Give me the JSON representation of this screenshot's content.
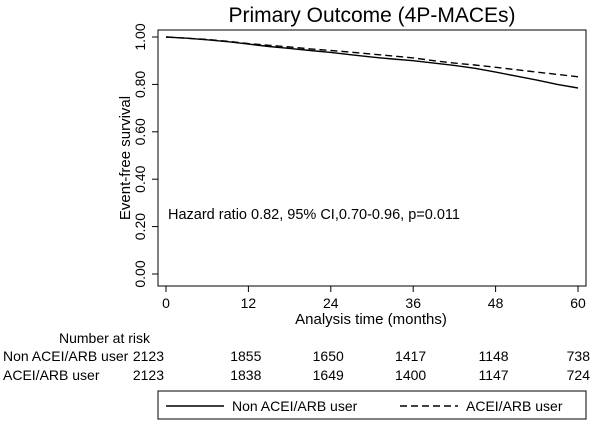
{
  "chart_data": {
    "type": "line",
    "title": "Primary Outcome (4P-MACEs)",
    "xlabel": "Analysis time (months)",
    "ylabel": "Event-free survival",
    "xlim": [
      0,
      60
    ],
    "ylim": [
      0,
      1
    ],
    "x_ticks": [
      "0",
      "12",
      "24",
      "36",
      "48",
      "60"
    ],
    "y_ticks": [
      "0.00",
      "0.20",
      "0.40",
      "0.60",
      "0.80",
      "1.00"
    ],
    "grid": false,
    "annotation": "Hazard ratio 0.82, 95% CI,0.70-0.96, p=0.011",
    "series": [
      {
        "name": "Non ACEI/ARB user",
        "style": "solid",
        "x": [
          0,
          3,
          6,
          9,
          12,
          15,
          18,
          21,
          24,
          27,
          30,
          33,
          36,
          39,
          42,
          45,
          48,
          51,
          54,
          57,
          60
        ],
        "y": [
          1.0,
          0.995,
          0.988,
          0.98,
          0.97,
          0.96,
          0.952,
          0.943,
          0.935,
          0.925,
          0.915,
          0.907,
          0.9,
          0.89,
          0.88,
          0.868,
          0.852,
          0.835,
          0.818,
          0.8,
          0.785
        ]
      },
      {
        "name": "ACEI/ARB user",
        "style": "dashed",
        "x": [
          0,
          3,
          6,
          9,
          12,
          15,
          18,
          21,
          24,
          27,
          30,
          33,
          36,
          39,
          42,
          45,
          48,
          51,
          54,
          57,
          60
        ],
        "y": [
          1.0,
          0.995,
          0.99,
          0.982,
          0.972,
          0.965,
          0.958,
          0.95,
          0.943,
          0.936,
          0.928,
          0.92,
          0.912,
          0.9,
          0.89,
          0.882,
          0.872,
          0.862,
          0.852,
          0.842,
          0.832
        ]
      }
    ],
    "risk_table": {
      "heading": "Number at risk",
      "times": [
        0,
        12,
        24,
        36,
        48,
        60
      ],
      "rows": [
        {
          "label": "Non ACEI/ARB user",
          "values": [
            "2123",
            "1855",
            "1650",
            "1417",
            "1148",
            "738"
          ]
        },
        {
          "label": "ACEI/ARB user",
          "values": [
            "2123",
            "1838",
            "1649",
            "1400",
            "1147",
            "724"
          ]
        }
      ]
    },
    "legend": {
      "position": "bottom",
      "entries": [
        {
          "label": "Non ACEI/ARB user",
          "style": "solid"
        },
        {
          "label": "ACEI/ARB user",
          "style": "dashed"
        }
      ]
    }
  }
}
